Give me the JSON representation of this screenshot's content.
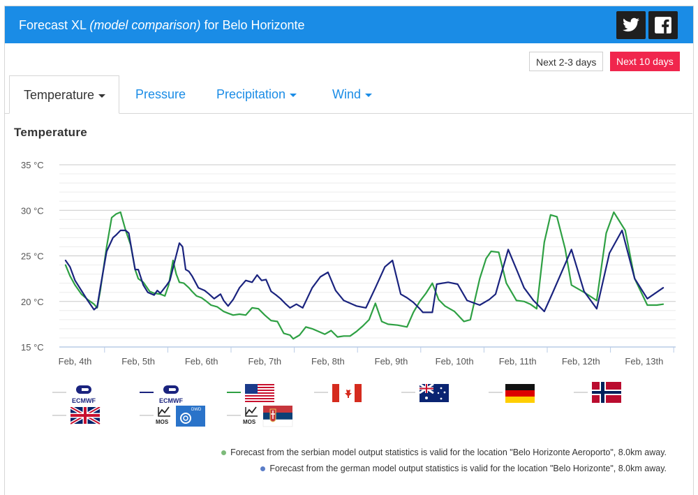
{
  "header": {
    "title_prefix": "Forecast XL",
    "title_italic": "(model comparison)",
    "title_suffix": "for Belo Horizonte"
  },
  "range_buttons": {
    "short": "Next 2-3 days",
    "long": "Next 10 days"
  },
  "tabs": [
    {
      "label": "Temperature",
      "dropdown": true,
      "active": true
    },
    {
      "label": "Pressure",
      "dropdown": false,
      "active": false
    },
    {
      "label": "Precipitation",
      "dropdown": true,
      "active": false
    },
    {
      "label": "Wind",
      "dropdown": true,
      "active": false
    }
  ],
  "colors": {
    "header": "#1a8ce6",
    "accent_red": "#f0264d",
    "ecmwf": "#1a237e",
    "gfs": "#2ea043",
    "grid": "#e2e2e2",
    "grid_major": "#c8c8c8",
    "axis": "#b8cbe6"
  },
  "chart_data": {
    "type": "line",
    "title": "Temperature",
    "ylim": [
      15,
      35
    ],
    "yticks": [
      "15 °C",
      "20 °C",
      "25 °C",
      "30 °C",
      "35 °C"
    ],
    "xlabels": [
      "Feb, 4th",
      "Feb, 5th",
      "Feb, 6th",
      "Feb, 7th",
      "Feb, 8th",
      "Feb, 9th",
      "Feb, 10th",
      "Feb, 11th",
      "Feb, 12th",
      "Feb, 13th"
    ],
    "x_range_days": [
      0,
      9.35
    ],
    "series": [
      {
        "color": "#1a237e",
        "points": [
          [
            -0.15,
            24.5
          ],
          [
            -0.08,
            23.8
          ],
          [
            0,
            22.3
          ],
          [
            0.1,
            21.2
          ],
          [
            0.2,
            20.1
          ],
          [
            0.3,
            19.1
          ],
          [
            0.35,
            19.4
          ],
          [
            0.4,
            21.5
          ],
          [
            0.5,
            25.5
          ],
          [
            0.6,
            27
          ],
          [
            0.65,
            27.3
          ],
          [
            0.72,
            27.8
          ],
          [
            0.8,
            27.8
          ],
          [
            0.85,
            27.5
          ],
          [
            0.95,
            23.5
          ],
          [
            1.0,
            23.5
          ],
          [
            1.08,
            21.8
          ],
          [
            1.15,
            21
          ],
          [
            1.25,
            20.7
          ],
          [
            1.3,
            21.2
          ],
          [
            1.35,
            20.9
          ],
          [
            1.45,
            21.8
          ],
          [
            1.5,
            22.3
          ],
          [
            1.58,
            24.5
          ],
          [
            1.65,
            26.4
          ],
          [
            1.7,
            26
          ],
          [
            1.75,
            23.5
          ],
          [
            1.8,
            23.3
          ],
          [
            1.85,
            22.8
          ],
          [
            1.95,
            21.5
          ],
          [
            2.05,
            21.2
          ],
          [
            2.12,
            20.8
          ],
          [
            2.2,
            20.3
          ],
          [
            2.3,
            20.8
          ],
          [
            2.35,
            20.1
          ],
          [
            2.42,
            19.5
          ],
          [
            2.5,
            20.2
          ],
          [
            2.6,
            21.5
          ],
          [
            2.7,
            22.3
          ],
          [
            2.8,
            22.1
          ],
          [
            2.88,
            22.9
          ],
          [
            2.95,
            22.3
          ],
          [
            3.02,
            22.4
          ],
          [
            3.1,
            21.1
          ],
          [
            3.18,
            20.7
          ],
          [
            3.25,
            20.3
          ],
          [
            3.32,
            19.8
          ],
          [
            3.4,
            19.3
          ],
          [
            3.5,
            19.7
          ],
          [
            3.6,
            19.3
          ],
          [
            3.75,
            21.5
          ],
          [
            3.88,
            22.7
          ],
          [
            4.0,
            23.2
          ],
          [
            4.12,
            21.2
          ],
          [
            4.25,
            20.1
          ],
          [
            4.45,
            19.5
          ],
          [
            4.6,
            19.3
          ],
          [
            4.75,
            21.5
          ],
          [
            4.9,
            23.8
          ],
          [
            5.02,
            24.5
          ],
          [
            5.15,
            20.8
          ],
          [
            5.25,
            20.4
          ],
          [
            5.35,
            19.9
          ],
          [
            5.45,
            19.2
          ],
          [
            5.5,
            18.8
          ],
          [
            5.65,
            18.8
          ],
          [
            5.72,
            21.9
          ],
          [
            5.9,
            22.1
          ],
          [
            6.05,
            21.9
          ],
          [
            6.2,
            20.1
          ],
          [
            6.4,
            19.6
          ],
          [
            6.55,
            20.2
          ],
          [
            6.65,
            20.8
          ],
          [
            6.85,
            25.7
          ],
          [
            7.0,
            23.2
          ],
          [
            7.1,
            21.5
          ],
          [
            7.25,
            20.1
          ],
          [
            7.42,
            18.9
          ],
          [
            7.55,
            20.9
          ],
          [
            7.85,
            25.7
          ],
          [
            8.05,
            21.1
          ],
          [
            8.25,
            19.2
          ],
          [
            8.45,
            25.3
          ],
          [
            8.65,
            27.8
          ],
          [
            8.85,
            22.5
          ],
          [
            9.05,
            20.3
          ],
          [
            9.3,
            21.5
          ]
        ]
      },
      {
        "color": "#2ea043",
        "points": [
          [
            -0.15,
            24
          ],
          [
            -0.08,
            22.8
          ],
          [
            0,
            21.8
          ],
          [
            0.1,
            20.8
          ],
          [
            0.2,
            20.2
          ],
          [
            0.3,
            19.7
          ],
          [
            0.35,
            19.3
          ],
          [
            0.4,
            21.2
          ],
          [
            0.5,
            26
          ],
          [
            0.58,
            29.2
          ],
          [
            0.65,
            29.6
          ],
          [
            0.72,
            29.8
          ],
          [
            0.8,
            27.8
          ],
          [
            0.88,
            26.2
          ],
          [
            0.95,
            23.5
          ],
          [
            1.0,
            22.5
          ],
          [
            1.08,
            22.1
          ],
          [
            1.18,
            21.1
          ],
          [
            1.25,
            20.9
          ],
          [
            1.35,
            20.8
          ],
          [
            1.42,
            20.6
          ],
          [
            1.48,
            21.8
          ],
          [
            1.55,
            24.5
          ],
          [
            1.6,
            23
          ],
          [
            1.65,
            22.1
          ],
          [
            1.72,
            22
          ],
          [
            1.8,
            21.5
          ],
          [
            1.85,
            21.1
          ],
          [
            1.92,
            20.6
          ],
          [
            2.0,
            20.4
          ],
          [
            2.08,
            20
          ],
          [
            2.15,
            19.6
          ],
          [
            2.25,
            19.4
          ],
          [
            2.35,
            18.9
          ],
          [
            2.42,
            18.7
          ],
          [
            2.5,
            18.5
          ],
          [
            2.6,
            18.6
          ],
          [
            2.7,
            18.5
          ],
          [
            2.8,
            19.3
          ],
          [
            2.9,
            19.2
          ],
          [
            3.0,
            18.5
          ],
          [
            3.1,
            17.9
          ],
          [
            3.2,
            17.8
          ],
          [
            3.3,
            16.5
          ],
          [
            3.4,
            16.3
          ],
          [
            3.45,
            15.9
          ],
          [
            3.55,
            16.3
          ],
          [
            3.65,
            17.2
          ],
          [
            3.75,
            17
          ],
          [
            3.85,
            16.7
          ],
          [
            3.95,
            16.4
          ],
          [
            4.05,
            16.8
          ],
          [
            4.15,
            16.1
          ],
          [
            4.25,
            16.2
          ],
          [
            4.35,
            16.2
          ],
          [
            4.45,
            16.7
          ],
          [
            4.55,
            17.3
          ],
          [
            4.65,
            18
          ],
          [
            4.75,
            19.8
          ],
          [
            4.85,
            17.8
          ],
          [
            4.95,
            17.5
          ],
          [
            5.1,
            17.4
          ],
          [
            5.25,
            17.2
          ],
          [
            5.35,
            18.8
          ],
          [
            5.45,
            20
          ],
          [
            5.55,
            20.9
          ],
          [
            5.65,
            22
          ],
          [
            5.75,
            20.2
          ],
          [
            5.85,
            19.5
          ],
          [
            6.0,
            18.9
          ],
          [
            6.15,
            17.8
          ],
          [
            6.25,
            18
          ],
          [
            6.4,
            22.5
          ],
          [
            6.5,
            24.7
          ],
          [
            6.58,
            25.5
          ],
          [
            6.7,
            25.4
          ],
          [
            6.82,
            22
          ],
          [
            6.98,
            20.1
          ],
          [
            7.1,
            20
          ],
          [
            7.2,
            19.7
          ],
          [
            7.3,
            19.2
          ],
          [
            7.42,
            26.5
          ],
          [
            7.52,
            29.5
          ],
          [
            7.62,
            29.3
          ],
          [
            7.75,
            25.8
          ],
          [
            7.85,
            21.8
          ],
          [
            8.05,
            21
          ],
          [
            8.25,
            20.1
          ],
          [
            8.4,
            27.5
          ],
          [
            8.52,
            29.8
          ],
          [
            8.7,
            27.8
          ],
          [
            8.85,
            22.5
          ],
          [
            9.05,
            19.6
          ],
          [
            9.2,
            19.6
          ],
          [
            9.3,
            19.7
          ]
        ]
      }
    ]
  },
  "legend": [
    {
      "icon": "ecmwf-logo",
      "label": "ECMWF",
      "active": false,
      "dash_color": "#d9d9d9"
    },
    {
      "icon": "ecmwf-logo",
      "label": "ECMWF",
      "active": true,
      "dash_color": "#1a237e"
    },
    {
      "icon": "usa-flag",
      "active": true,
      "dash_color": "#2ea043"
    },
    {
      "icon": "canada-flag",
      "active": false,
      "dash_color": "#d9d9d9"
    },
    {
      "icon": "australia-flag",
      "active": false,
      "dash_color": "#d9d9d9"
    },
    {
      "icon": "germany-flag",
      "active": false,
      "dash_color": "#d9d9d9"
    },
    {
      "icon": "norway-flag",
      "active": false,
      "dash_color": "#d9d9d9"
    },
    {
      "icon": "uk-flag",
      "active": false,
      "dash_color": "#d9d9d9"
    },
    {
      "icon": "mos-dwd-logo",
      "label": "MOS",
      "sublabel": "DWD",
      "active": false,
      "dash_color": "#d9d9d9"
    },
    {
      "icon": "mos-serbia-logo",
      "label": "MOS",
      "active": false,
      "dash_color": "#d9d9d9"
    }
  ],
  "notes": [
    {
      "color": "#7dba7a",
      "text": "Forecast from the serbian model output statistics is valid for the location \"Belo Horizonte Aeroporto\", 8.0km away."
    },
    {
      "color": "#5b7dc7",
      "text": "Forecast from the german model output statistics is valid for the location \"Belo Horizonte\", 8.0km away."
    }
  ]
}
